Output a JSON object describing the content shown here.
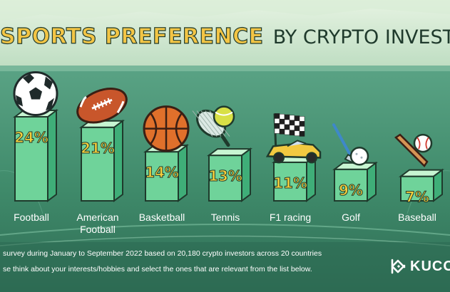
{
  "title": {
    "highlight": "SPORTS PREFERENCE",
    "rest": "BY CRYPTO INVESTORS"
  },
  "chart_data": {
    "type": "bar",
    "title": "SPORTS PREFERENCE BY CRYPTO INVESTORS",
    "categories": [
      "Football",
      "American Football",
      "Basketball",
      "Tennis",
      "F1 racing",
      "Golf",
      "Baseball"
    ],
    "category_lines": [
      [
        "Football"
      ],
      [
        "American",
        "Football"
      ],
      [
        "Basketball"
      ],
      [
        "Tennis"
      ],
      [
        "F1 racing"
      ],
      [
        "Golf"
      ],
      [
        "Baseball"
      ]
    ],
    "values": [
      24,
      21,
      14,
      13,
      11,
      9,
      7
    ],
    "value_labels": [
      "24%",
      "21%",
      "14%",
      "13%",
      "11%",
      "9%",
      "7%"
    ],
    "icons": [
      "soccer-ball-icon",
      "american-football-icon",
      "basketball-icon",
      "tennis-racket-ball-icon",
      "f1-car-checkered-flag-icon",
      "golf-club-ball-icon",
      "baseball-bat-ball-icon"
    ],
    "ylim": [
      0,
      24
    ],
    "xlabel": "",
    "ylabel": "",
    "grid": false,
    "legend": "none"
  },
  "footer": {
    "line1": "survey during January to September 2022 based on 20,180 crypto investors across 20 countries",
    "line2": "se think about your interests/hobbies and select the ones that are relevant from the list below."
  },
  "brand": {
    "name": "KUCO"
  },
  "colors": {
    "title_yellow": "#f3c545",
    "dark_green": "#1f3a2c",
    "field_green": "#4e9678",
    "pillar_top": "#c7f5d2",
    "pillar_left": "#6fd39a",
    "pillar_right": "#3fae78",
    "value_yellow": "#f6cf3c"
  }
}
